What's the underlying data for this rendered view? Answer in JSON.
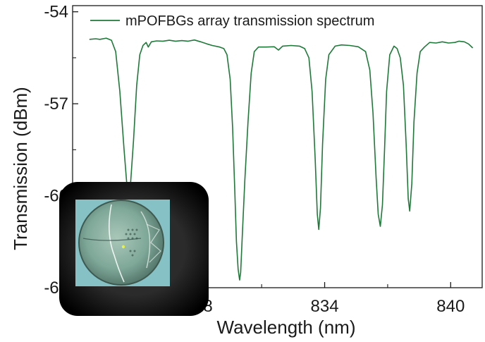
{
  "colors": {
    "series": "#1f7a3a",
    "axis": "#1a1a1a",
    "background": "#ffffff"
  },
  "inset": {
    "subject": "micrograph of mPOF cross-section"
  },
  "chart_data": {
    "type": "line",
    "xlabel": "Wavelength (nm)",
    "ylabel": "Transmission (dBm)",
    "xlim": [
      822,
      841.5
    ],
    "ylim": [
      -63,
      -53.8
    ],
    "xticks": [
      {
        "value": 828,
        "label": "828"
      },
      {
        "value": 834,
        "label": "834"
      },
      {
        "value": 840,
        "label": "840"
      }
    ],
    "yticks": [
      {
        "value": -54,
        "label": "-54"
      },
      {
        "value": -57,
        "label": "-57"
      },
      {
        "value": -60,
        "label": "-60"
      },
      {
        "value": -63,
        "label": "-63"
      }
    ],
    "legend": {
      "position": "top-left"
    },
    "grid": false,
    "series": [
      {
        "name": "mPOFBGs array transmission spectrum",
        "color": "#1f7a3a",
        "points": [
          [
            822.8,
            -54.9
          ],
          [
            823.1,
            -54.88
          ],
          [
            823.3,
            -54.9
          ],
          [
            823.6,
            -54.86
          ],
          [
            823.85,
            -54.93
          ],
          [
            824.05,
            -55.3
          ],
          [
            824.25,
            -56.6
          ],
          [
            824.45,
            -58.5
          ],
          [
            824.6,
            -59.8
          ],
          [
            824.75,
            -59.7
          ],
          [
            824.9,
            -58.2
          ],
          [
            825.05,
            -56.4
          ],
          [
            825.2,
            -55.4
          ],
          [
            825.35,
            -55.1
          ],
          [
            825.5,
            -55.0
          ],
          [
            825.6,
            -55.15
          ],
          [
            825.75,
            -54.98
          ],
          [
            826.0,
            -54.95
          ],
          [
            826.3,
            -54.96
          ],
          [
            826.6,
            -54.93
          ],
          [
            826.9,
            -54.96
          ],
          [
            827.2,
            -54.94
          ],
          [
            827.5,
            -54.96
          ],
          [
            827.8,
            -54.92
          ],
          [
            828.1,
            -54.98
          ],
          [
            828.4,
            -55.05
          ],
          [
            828.65,
            -55.1
          ],
          [
            829.0,
            -55.15
          ],
          [
            829.2,
            -55.2
          ],
          [
            829.35,
            -55.4
          ],
          [
            829.5,
            -56.2
          ],
          [
            829.62,
            -57.8
          ],
          [
            829.72,
            -59.8
          ],
          [
            829.8,
            -61.5
          ],
          [
            829.88,
            -62.4
          ],
          [
            829.95,
            -62.75
          ],
          [
            830.0,
            -62.5
          ],
          [
            830.08,
            -61.3
          ],
          [
            830.2,
            -59.5
          ],
          [
            830.35,
            -57.6
          ],
          [
            830.5,
            -56.0
          ],
          [
            830.65,
            -55.3
          ],
          [
            830.85,
            -55.15
          ],
          [
            831.2,
            -55.15
          ],
          [
            831.6,
            -55.14
          ],
          [
            831.8,
            -55.25
          ],
          [
            832.0,
            -55.12
          ],
          [
            832.4,
            -55.1
          ],
          [
            832.8,
            -55.12
          ],
          [
            833.05,
            -55.2
          ],
          [
            833.25,
            -55.5
          ],
          [
            833.4,
            -56.6
          ],
          [
            833.55,
            -58.8
          ],
          [
            833.65,
            -60.6
          ],
          [
            833.72,
            -61.1
          ],
          [
            833.8,
            -60.4
          ],
          [
            833.9,
            -58.3
          ],
          [
            834.05,
            -56.2
          ],
          [
            834.2,
            -55.4
          ],
          [
            834.5,
            -55.12
          ],
          [
            834.8,
            -55.08
          ],
          [
            835.2,
            -55.1
          ],
          [
            835.6,
            -55.14
          ],
          [
            835.95,
            -55.3
          ],
          [
            836.15,
            -55.9
          ],
          [
            836.3,
            -57.3
          ],
          [
            836.45,
            -59.4
          ],
          [
            836.55,
            -60.6
          ],
          [
            836.65,
            -61.0
          ],
          [
            836.75,
            -60.3
          ],
          [
            836.85,
            -58.5
          ],
          [
            836.95,
            -56.6
          ],
          [
            837.1,
            -55.4
          ],
          [
            837.3,
            -55.12
          ],
          [
            837.45,
            -55.2
          ],
          [
            837.6,
            -55.5
          ],
          [
            837.75,
            -56.4
          ],
          [
            837.88,
            -58.3
          ],
          [
            837.98,
            -60.1
          ],
          [
            838.05,
            -60.5
          ],
          [
            838.15,
            -59.6
          ],
          [
            838.25,
            -57.6
          ],
          [
            838.4,
            -56.0
          ],
          [
            838.55,
            -55.3
          ],
          [
            838.75,
            -55.15
          ],
          [
            839.0,
            -55.0
          ],
          [
            839.3,
            -55.02
          ],
          [
            839.6,
            -54.98
          ],
          [
            839.9,
            -55.02
          ],
          [
            840.2,
            -55.0
          ],
          [
            840.4,
            -54.96
          ],
          [
            840.65,
            -54.98
          ],
          [
            840.85,
            -55.05
          ],
          [
            841.05,
            -55.18
          ]
        ]
      }
    ]
  }
}
